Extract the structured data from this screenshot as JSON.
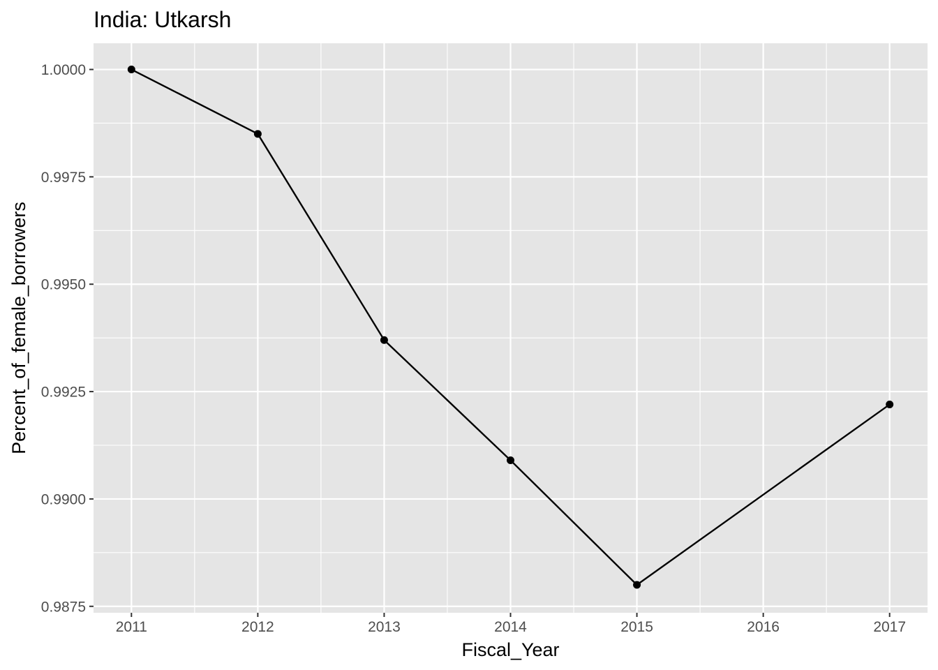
{
  "chart_data": {
    "type": "line",
    "title": "India:  Utkarsh",
    "xlabel": "Fiscal_Year",
    "ylabel": "Percent_of_female_borrowers",
    "x": [
      2011,
      2012,
      2013,
      2014,
      2015,
      2017
    ],
    "y": [
      1.0,
      0.9985,
      0.9937,
      0.9909,
      0.988,
      0.9922
    ],
    "xlim": [
      2010.7,
      2017.3
    ],
    "ylim": [
      0.98735,
      1.00061
    ],
    "x_ticks": [
      2011,
      2012,
      2013,
      2014,
      2015,
      2016,
      2017
    ],
    "x_tick_labels": [
      "2011",
      "2012",
      "2013",
      "2014",
      "2015",
      "2016",
      "2017"
    ],
    "y_ticks": [
      0.9875,
      0.99,
      0.9925,
      0.995,
      0.9975,
      1.0
    ],
    "y_tick_labels": [
      "0.9875",
      "0.9900",
      "0.9925",
      "0.9950",
      "0.9975",
      "1.0000"
    ],
    "grid": true,
    "legend": "none",
    "colors": {
      "panel_background": "#e5e5e5",
      "grid": "#ffffff",
      "line": "#000000",
      "points": "#000000",
      "tick_text": "#4d4d4d",
      "tick_marks": "#333333"
    }
  }
}
